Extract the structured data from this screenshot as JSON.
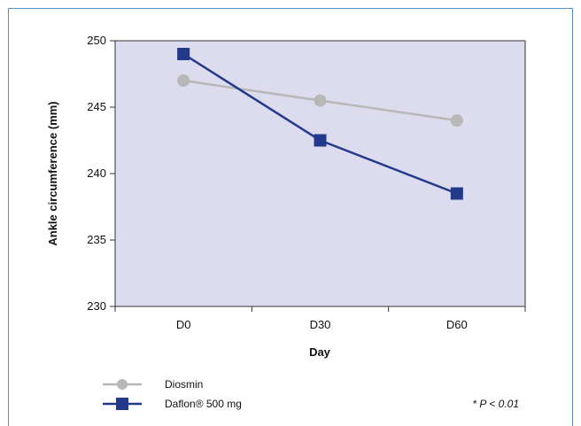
{
  "chart_data": {
    "type": "line",
    "categories": [
      "D0",
      "D30",
      "D60"
    ],
    "xlabel": "Day",
    "ylabel": "Ankle circumference (mm)",
    "ylim": [
      230,
      250
    ],
    "yticks": [
      230,
      235,
      240,
      245,
      250
    ],
    "grid": false,
    "legend_position": "bottom-left",
    "plot_background": "#dcdcee",
    "series": [
      {
        "name": "Diosmin",
        "values": [
          247.0,
          245.5,
          244.0
        ],
        "color": "#b8b8b8",
        "marker": "circle"
      },
      {
        "name": "Daflon® 500 mg",
        "values": [
          249.0,
          242.5,
          238.5
        ],
        "color": "#233a8c",
        "marker": "square"
      }
    ],
    "annotation": "* P < 0.01"
  }
}
